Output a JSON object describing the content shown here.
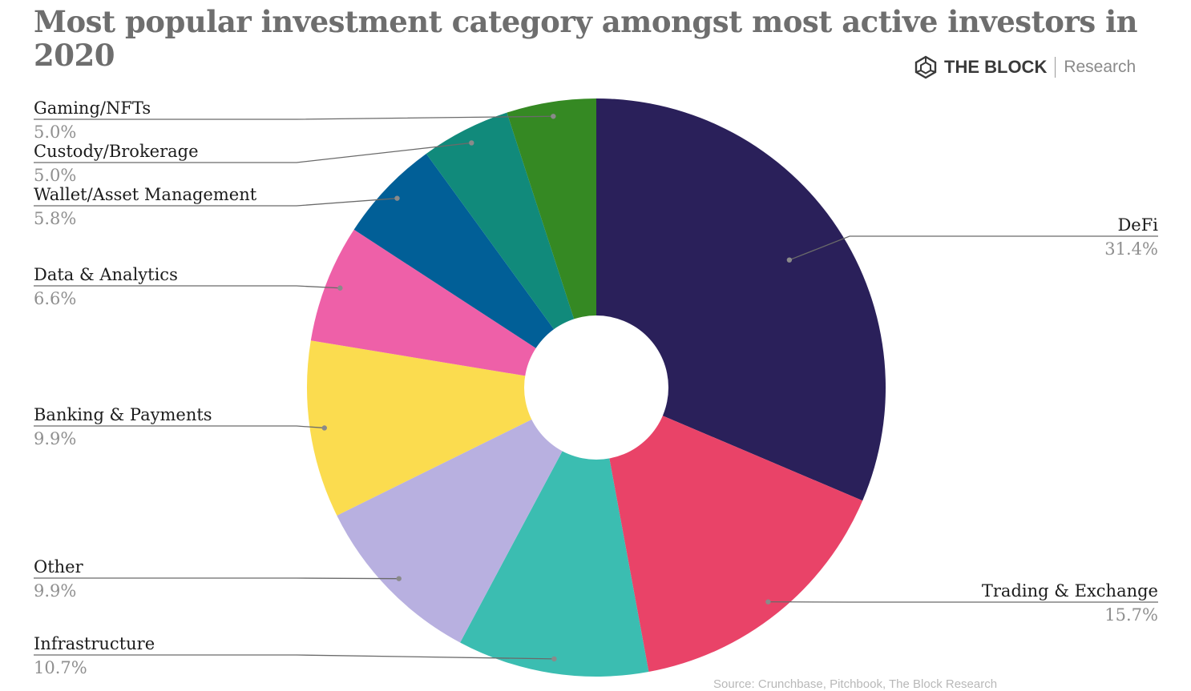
{
  "brand": {
    "name": "THE BLOCK",
    "sub": "Research",
    "logo_icon": "cube-icon"
  },
  "source_note": "Source: Crunchbase, Pitchbook, The Block Research",
  "chart_data": {
    "type": "pie",
    "title": "Most popular investment category amongst most active investors in 2020",
    "donut": true,
    "value_suffix": "%",
    "slices": [
      {
        "name": "DeFi",
        "value": 31.4,
        "color": "#2a205a",
        "label_side": "right"
      },
      {
        "name": "Trading & Exchange",
        "value": 15.7,
        "color": "#e94368",
        "label_side": "right"
      },
      {
        "name": "Infrastructure",
        "value": 10.7,
        "color": "#3bbdb1",
        "label_side": "left"
      },
      {
        "name": "Other",
        "value": 9.9,
        "color": "#b8b0e0",
        "label_side": "left"
      },
      {
        "name": "Banking & Payments",
        "value": 9.9,
        "color": "#fbdc4f",
        "label_side": "left"
      },
      {
        "name": "Data & Analytics",
        "value": 6.6,
        "color": "#ee60a8",
        "label_side": "left"
      },
      {
        "name": "Wallet/Asset Management",
        "value": 5.8,
        "color": "#015f97",
        "label_side": "left"
      },
      {
        "name": "Custody/Brokerage",
        "value": 5.0,
        "color": "#118a7b",
        "label_side": "left"
      },
      {
        "name": "Gaming/NFTs",
        "value": 5.0,
        "color": "#358923",
        "label_side": "left"
      }
    ]
  }
}
